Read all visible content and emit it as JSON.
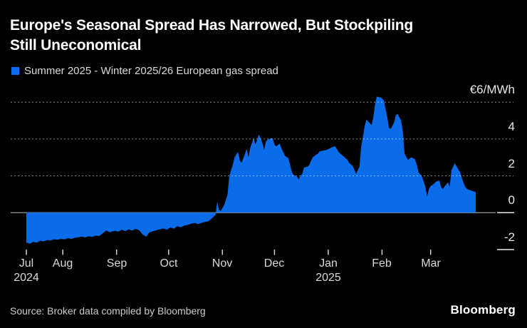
{
  "header": {
    "title_line1": "Europe's Seasonal Spread Has Narrowed, But Stockpiling",
    "title_line2": "Still Uneconomical",
    "legend": {
      "label": "Summer 2025 - Winter 2025/26 European gas spread",
      "swatch_color": "#0B6CF2"
    }
  },
  "footer": {
    "source": "Source: Broker data compiled by Bloomberg",
    "logo": "Bloomberg"
  },
  "colors": {
    "background": "#000000",
    "area_fill": "#0A6CE8",
    "grid_dots": "rgba(255,255,255,0.55)",
    "zero_line": "#8c8c8c",
    "edge_segment": "#e9e9e9",
    "tick_mark": "#d0d0d0"
  },
  "chart_data": {
    "type": "area",
    "title": "Europe's Seasonal Spread Has Narrowed, But Stockpiling Still Uneconomical",
    "unit_label": "€6/MWh",
    "ylabel": "€/MWh",
    "ylim": [
      -2.7,
      6.6
    ],
    "legend_position": "top-left",
    "grid": "dotted horizontal at 6, 4, 2; solid baseline at 0",
    "y_axis": {
      "ticks": [
        {
          "value": 6,
          "label": "€6/MWh",
          "dotted": true
        },
        {
          "value": 4,
          "label": "4",
          "dotted": true
        },
        {
          "value": 2,
          "label": "2",
          "dotted": true
        },
        {
          "value": 0,
          "label": "0",
          "edge_segment": true,
          "zero_line": true
        },
        {
          "value": -2,
          "label": "-2",
          "edge_segment": true
        }
      ]
    },
    "x_axis": {
      "start": "2024-07-11",
      "end": "2025-03-27",
      "ticks": [
        {
          "date": "2024-07-11",
          "label": "Jul",
          "year": "2024"
        },
        {
          "date": "2024-08-01",
          "label": "Aug"
        },
        {
          "date": "2024-09-01",
          "label": "Sep"
        },
        {
          "date": "2024-10-01",
          "label": "Oct"
        },
        {
          "date": "2024-11-01",
          "label": "Nov"
        },
        {
          "date": "2024-12-01",
          "label": "Dec"
        },
        {
          "date": "2025-01-01",
          "label": "Jan",
          "year": "2025"
        },
        {
          "date": "2025-02-01",
          "label": "Feb"
        },
        {
          "date": "2025-03-01",
          "label": "Mar"
        }
      ]
    },
    "series": [
      {
        "name": "Summer 2025 - Winter 2025/26 European gas spread",
        "color": "#0A6CE8",
        "points": [
          [
            "2024-07-11",
            -1.62
          ],
          [
            "2024-07-13",
            -1.68
          ],
          [
            "2024-07-15",
            -1.58
          ],
          [
            "2024-07-17",
            -1.63
          ],
          [
            "2024-07-19",
            -1.52
          ],
          [
            "2024-07-21",
            -1.56
          ],
          [
            "2024-07-23",
            -1.48
          ],
          [
            "2024-07-25",
            -1.51
          ],
          [
            "2024-07-27",
            -1.44
          ],
          [
            "2024-07-29",
            -1.47
          ],
          [
            "2024-07-31",
            -1.42
          ],
          [
            "2024-08-02",
            -1.45
          ],
          [
            "2024-08-04",
            -1.38
          ],
          [
            "2024-08-06",
            -1.42
          ],
          [
            "2024-08-08",
            -1.36
          ],
          [
            "2024-08-10",
            -1.33
          ],
          [
            "2024-08-12",
            -1.3
          ],
          [
            "2024-08-14",
            -1.34
          ],
          [
            "2024-08-16",
            -1.28
          ],
          [
            "2024-08-18",
            -1.31
          ],
          [
            "2024-08-20",
            -1.24
          ],
          [
            "2024-08-22",
            -1.27
          ],
          [
            "2024-08-24",
            -1.12
          ],
          [
            "2024-08-26",
            -0.96
          ],
          [
            "2024-08-28",
            -1.06
          ],
          [
            "2024-08-31",
            -0.98
          ],
          [
            "2024-09-02",
            -1.03
          ],
          [
            "2024-09-04",
            -0.92
          ],
          [
            "2024-09-06",
            -1.0
          ],
          [
            "2024-09-08",
            -0.9
          ],
          [
            "2024-09-10",
            -0.97
          ],
          [
            "2024-09-12",
            -0.88
          ],
          [
            "2024-09-14",
            -0.95
          ],
          [
            "2024-09-16",
            -1.18
          ],
          [
            "2024-09-18",
            -1.3
          ],
          [
            "2024-09-20",
            -1.06
          ],
          [
            "2024-09-22",
            -1.0
          ],
          [
            "2024-09-24",
            -0.95
          ],
          [
            "2024-09-26",
            -0.9
          ],
          [
            "2024-09-28",
            -0.86
          ],
          [
            "2024-09-30",
            -0.92
          ],
          [
            "2024-10-02",
            -0.8
          ],
          [
            "2024-10-04",
            -0.87
          ],
          [
            "2024-10-06",
            -0.73
          ],
          [
            "2024-10-08",
            -0.79
          ],
          [
            "2024-10-10",
            -0.7
          ],
          [
            "2024-10-12",
            -0.66
          ],
          [
            "2024-10-14",
            -0.6
          ],
          [
            "2024-10-16",
            -0.56
          ],
          [
            "2024-10-18",
            -0.62
          ],
          [
            "2024-10-20",
            -0.55
          ],
          [
            "2024-10-22",
            -0.5
          ],
          [
            "2024-10-24",
            -0.46
          ],
          [
            "2024-10-26",
            -0.3
          ],
          [
            "2024-10-28",
            -0.12
          ],
          [
            "2024-10-29",
            0.6
          ],
          [
            "2024-10-30",
            0.15
          ],
          [
            "2024-10-31",
            0.1
          ],
          [
            "2024-11-01",
            0.25
          ],
          [
            "2024-11-02",
            0.4
          ],
          [
            "2024-11-04",
            1.0
          ],
          [
            "2024-11-05",
            2.0
          ],
          [
            "2024-11-06",
            2.3
          ],
          [
            "2024-11-07",
            2.6
          ],
          [
            "2024-11-08",
            3.0
          ],
          [
            "2024-11-10",
            3.3
          ],
          [
            "2024-11-11",
            2.85
          ],
          [
            "2024-11-12",
            2.7
          ],
          [
            "2024-11-14",
            3.2
          ],
          [
            "2024-11-15",
            3.45
          ],
          [
            "2024-11-16",
            3.0
          ],
          [
            "2024-11-17",
            3.5
          ],
          [
            "2024-11-19",
            4.05
          ],
          [
            "2024-11-20",
            3.7
          ],
          [
            "2024-11-21",
            3.95
          ],
          [
            "2024-11-22",
            4.25
          ],
          [
            "2024-11-24",
            3.8
          ],
          [
            "2024-11-25",
            3.4
          ],
          [
            "2024-11-26",
            3.85
          ],
          [
            "2024-11-27",
            3.95
          ],
          [
            "2024-11-28",
            4.0
          ],
          [
            "2024-11-30",
            4.05
          ],
          [
            "2024-12-01",
            3.7
          ],
          [
            "2024-12-02",
            3.6
          ],
          [
            "2024-12-04",
            3.75
          ],
          [
            "2024-12-05",
            3.5
          ],
          [
            "2024-12-06",
            3.3
          ],
          [
            "2024-12-07",
            3.1
          ],
          [
            "2024-12-09",
            2.95
          ],
          [
            "2024-12-10",
            2.6
          ],
          [
            "2024-12-11",
            2.2
          ],
          [
            "2024-12-12",
            2.05
          ],
          [
            "2024-12-14",
            1.95
          ],
          [
            "2024-12-15",
            1.8
          ],
          [
            "2024-12-16",
            2.0
          ],
          [
            "2024-12-17",
            2.1
          ],
          [
            "2024-12-18",
            2.45
          ],
          [
            "2024-12-20",
            2.5
          ],
          [
            "2024-12-21",
            2.58
          ],
          [
            "2024-12-22",
            2.8
          ],
          [
            "2024-12-23",
            3.0
          ],
          [
            "2024-12-25",
            3.15
          ],
          [
            "2024-12-26",
            3.2
          ],
          [
            "2024-12-27",
            3.32
          ],
          [
            "2024-12-28",
            3.35
          ],
          [
            "2024-12-30",
            3.38
          ],
          [
            "2024-12-31",
            3.4
          ],
          [
            "2025-01-01",
            3.45
          ],
          [
            "2025-01-02",
            3.5
          ],
          [
            "2025-01-04",
            3.58
          ],
          [
            "2025-01-05",
            3.6
          ],
          [
            "2025-01-06",
            3.45
          ],
          [
            "2025-01-07",
            3.3
          ],
          [
            "2025-01-08",
            3.2
          ],
          [
            "2025-01-10",
            3.05
          ],
          [
            "2025-01-11",
            2.95
          ],
          [
            "2025-01-12",
            2.88
          ],
          [
            "2025-01-13",
            2.7
          ],
          [
            "2025-01-15",
            2.55
          ],
          [
            "2025-01-16",
            2.35
          ],
          [
            "2025-01-17",
            2.1
          ],
          [
            "2025-01-19",
            2.5
          ],
          [
            "2025-01-20",
            3.6
          ],
          [
            "2025-01-21",
            4.1
          ],
          [
            "2025-01-22",
            4.7
          ],
          [
            "2025-01-23",
            5.05
          ],
          [
            "2025-01-24",
            4.95
          ],
          [
            "2025-01-26",
            4.75
          ],
          [
            "2025-01-27",
            5.2
          ],
          [
            "2025-01-28",
            5.9
          ],
          [
            "2025-01-29",
            6.3
          ],
          [
            "2025-01-31",
            6.25
          ],
          [
            "2025-02-01",
            6.2
          ],
          [
            "2025-02-02",
            6.1
          ],
          [
            "2025-02-04",
            5.2
          ],
          [
            "2025-02-05",
            4.6
          ],
          [
            "2025-02-06",
            4.55
          ],
          [
            "2025-02-08",
            4.9
          ],
          [
            "2025-02-09",
            5.3
          ],
          [
            "2025-02-10",
            5.35
          ],
          [
            "2025-02-12",
            5.0
          ],
          [
            "2025-02-13",
            4.4
          ],
          [
            "2025-02-14",
            3.2
          ],
          [
            "2025-02-16",
            2.85
          ],
          [
            "2025-02-17",
            2.95
          ],
          [
            "2025-02-18",
            3.0
          ],
          [
            "2025-02-20",
            2.9
          ],
          [
            "2025-02-21",
            2.6
          ],
          [
            "2025-02-22",
            2.2
          ],
          [
            "2025-02-24",
            1.95
          ],
          [
            "2025-02-25",
            1.7
          ],
          [
            "2025-02-26",
            1.4
          ],
          [
            "2025-02-27",
            0.88
          ],
          [
            "2025-02-28",
            1.28
          ],
          [
            "2025-03-01",
            1.45
          ],
          [
            "2025-03-02",
            1.5
          ],
          [
            "2025-03-03",
            1.58
          ],
          [
            "2025-03-04",
            1.68
          ],
          [
            "2025-03-06",
            1.75
          ],
          [
            "2025-03-07",
            1.4
          ],
          [
            "2025-03-08",
            1.28
          ],
          [
            "2025-03-09",
            1.42
          ],
          [
            "2025-03-11",
            1.65
          ],
          [
            "2025-03-12",
            1.4
          ],
          [
            "2025-03-13",
            2.3
          ],
          [
            "2025-03-14",
            2.5
          ],
          [
            "2025-03-15",
            2.68
          ],
          [
            "2025-03-17",
            2.35
          ],
          [
            "2025-03-18",
            2.2
          ],
          [
            "2025-03-19",
            1.9
          ],
          [
            "2025-03-20",
            1.6
          ],
          [
            "2025-03-21",
            1.4
          ],
          [
            "2025-03-22",
            1.28
          ],
          [
            "2025-03-24",
            1.22
          ],
          [
            "2025-03-25",
            1.18
          ],
          [
            "2025-03-26",
            1.15
          ],
          [
            "2025-03-27",
            1.12
          ]
        ]
      }
    ]
  }
}
